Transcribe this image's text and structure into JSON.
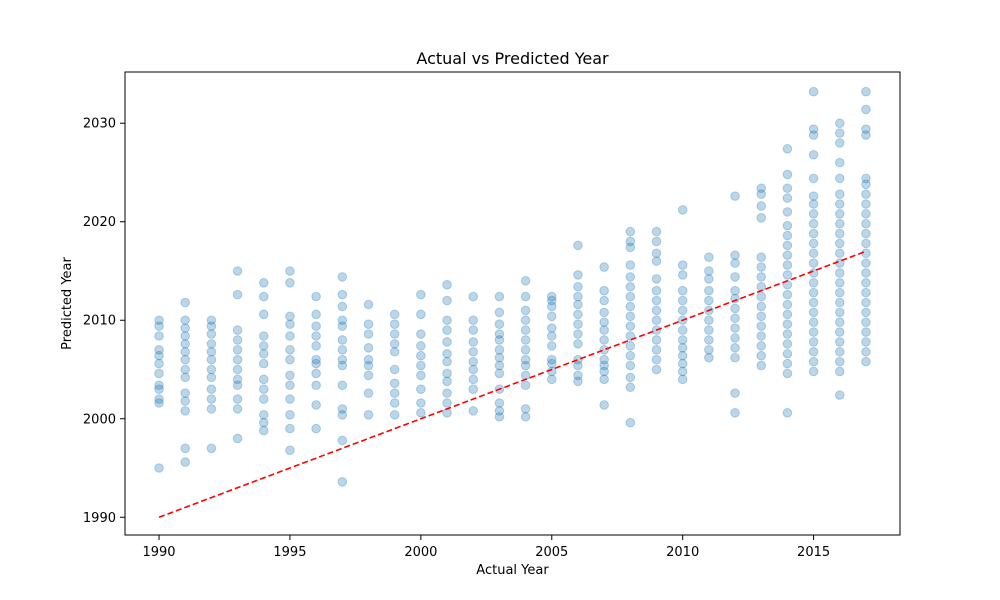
{
  "chart_data": {
    "type": "scatter",
    "title": "Actual vs Predicted Year",
    "xlabel": "Actual Year",
    "ylabel": "Predicted Year",
    "xlim": [
      1988.7,
      2018.3
    ],
    "ylim": [
      1988.2,
      2035.2
    ],
    "xticks": [
      1990,
      1995,
      2000,
      2005,
      2010,
      2015
    ],
    "yticks": [
      1990,
      2000,
      2010,
      2020,
      2030
    ],
    "grid": false,
    "point_color": "#1f77b4",
    "point_alpha": 0.3,
    "reference_line": {
      "style": "dashed",
      "color": "#ff0000",
      "points": [
        [
          1990,
          1990
        ],
        [
          2017,
          2017
        ]
      ]
    },
    "points": [
      [
        1990,
        1995.0
      ],
      [
        1990,
        2001.6
      ],
      [
        1990,
        2002.0
      ],
      [
        1990,
        2003.0
      ],
      [
        1990,
        2003.4
      ],
      [
        1990,
        2004.6
      ],
      [
        1990,
        2005.6
      ],
      [
        1990,
        2006.4
      ],
      [
        1990,
        2007.0
      ],
      [
        1990,
        2008.4
      ],
      [
        1990,
        2009.4
      ],
      [
        1990,
        2010.0
      ],
      [
        1991,
        1995.6
      ],
      [
        1991,
        1997.0
      ],
      [
        1991,
        2000.8
      ],
      [
        1991,
        2001.8
      ],
      [
        1991,
        2002.6
      ],
      [
        1991,
        2004.2
      ],
      [
        1991,
        2005.0
      ],
      [
        1991,
        2006.0
      ],
      [
        1991,
        2006.8
      ],
      [
        1991,
        2007.6
      ],
      [
        1991,
        2008.4
      ],
      [
        1991,
        2009.2
      ],
      [
        1991,
        2010.0
      ],
      [
        1991,
        2011.8
      ],
      [
        1992,
        1997.0
      ],
      [
        1992,
        2001.0
      ],
      [
        1992,
        2002.0
      ],
      [
        1992,
        2003.0
      ],
      [
        1992,
        2004.2
      ],
      [
        1992,
        2005.0
      ],
      [
        1992,
        2006.0
      ],
      [
        1992,
        2006.8
      ],
      [
        1992,
        2007.6
      ],
      [
        1992,
        2008.6
      ],
      [
        1992,
        2009.4
      ],
      [
        1992,
        2010.0
      ],
      [
        1993,
        1998.0
      ],
      [
        1993,
        2001.0
      ],
      [
        1993,
        2002.0
      ],
      [
        1993,
        2003.4
      ],
      [
        1993,
        2004.0
      ],
      [
        1993,
        2005.0
      ],
      [
        1993,
        2006.0
      ],
      [
        1993,
        2007.0
      ],
      [
        1993,
        2008.0
      ],
      [
        1993,
        2009.0
      ],
      [
        1993,
        2012.6
      ],
      [
        1993,
        2015.0
      ],
      [
        1994,
        1998.8
      ],
      [
        1994,
        1999.6
      ],
      [
        1994,
        2000.4
      ],
      [
        1994,
        2002.0
      ],
      [
        1994,
        2003.0
      ],
      [
        1994,
        2004.0
      ],
      [
        1994,
        2005.6
      ],
      [
        1994,
        2006.6
      ],
      [
        1994,
        2007.4
      ],
      [
        1994,
        2008.4
      ],
      [
        1994,
        2010.6
      ],
      [
        1994,
        2012.4
      ],
      [
        1994,
        2013.8
      ],
      [
        1995,
        1996.8
      ],
      [
        1995,
        1999.0
      ],
      [
        1995,
        2000.4
      ],
      [
        1995,
        2002.0
      ],
      [
        1995,
        2003.4
      ],
      [
        1995,
        2004.4
      ],
      [
        1995,
        2006.0
      ],
      [
        1995,
        2007.0
      ],
      [
        1995,
        2008.4
      ],
      [
        1995,
        2009.6
      ],
      [
        1995,
        2010.4
      ],
      [
        1995,
        2013.8
      ],
      [
        1995,
        2015.0
      ],
      [
        1996,
        1999.0
      ],
      [
        1996,
        2001.4
      ],
      [
        1996,
        2003.4
      ],
      [
        1996,
        2004.6
      ],
      [
        1996,
        2005.6
      ],
      [
        1996,
        2006.0
      ],
      [
        1996,
        2007.4
      ],
      [
        1996,
        2008.4
      ],
      [
        1996,
        2009.4
      ],
      [
        1996,
        2010.6
      ],
      [
        1996,
        2012.4
      ],
      [
        1997,
        1993.6
      ],
      [
        1997,
        1997.8
      ],
      [
        1997,
        2000.4
      ],
      [
        1997,
        2001.0
      ],
      [
        1997,
        2003.4
      ],
      [
        1997,
        2005.4
      ],
      [
        1997,
        2006.0
      ],
      [
        1997,
        2007.0
      ],
      [
        1997,
        2008.0
      ],
      [
        1997,
        2009.4
      ],
      [
        1997,
        2010.0
      ],
      [
        1997,
        2011.4
      ],
      [
        1997,
        2012.6
      ],
      [
        1997,
        2014.4
      ],
      [
        1998,
        2000.4
      ],
      [
        1998,
        2002.6
      ],
      [
        1998,
        2004.4
      ],
      [
        1998,
        2005.4
      ],
      [
        1998,
        2006.0
      ],
      [
        1998,
        2007.2
      ],
      [
        1998,
        2008.6
      ],
      [
        1998,
        2009.6
      ],
      [
        1998,
        2011.6
      ],
      [
        1999,
        2000.4
      ],
      [
        1999,
        2001.6
      ],
      [
        1999,
        2002.6
      ],
      [
        1999,
        2003.6
      ],
      [
        1999,
        2005.0
      ],
      [
        1999,
        2006.8
      ],
      [
        1999,
        2007.6
      ],
      [
        1999,
        2008.6
      ],
      [
        1999,
        2009.6
      ],
      [
        1999,
        2010.6
      ],
      [
        2000,
        2000.6
      ],
      [
        2000,
        2001.6
      ],
      [
        2000,
        2003.0
      ],
      [
        2000,
        2004.4
      ],
      [
        2000,
        2005.4
      ],
      [
        2000,
        2006.4
      ],
      [
        2000,
        2007.4
      ],
      [
        2000,
        2008.6
      ],
      [
        2000,
        2010.6
      ],
      [
        2000,
        2012.6
      ],
      [
        2001,
        2000.6
      ],
      [
        2001,
        2001.6
      ],
      [
        2001,
        2002.6
      ],
      [
        2001,
        2003.8
      ],
      [
        2001,
        2004.6
      ],
      [
        2001,
        2005.8
      ],
      [
        2001,
        2006.6
      ],
      [
        2001,
        2007.8
      ],
      [
        2001,
        2009.0
      ],
      [
        2001,
        2010.0
      ],
      [
        2001,
        2012.0
      ],
      [
        2001,
        2013.6
      ],
      [
        2002,
        2000.8
      ],
      [
        2002,
        2003.0
      ],
      [
        2002,
        2004.0
      ],
      [
        2002,
        2005.0
      ],
      [
        2002,
        2005.8
      ],
      [
        2002,
        2006.8
      ],
      [
        2002,
        2007.8
      ],
      [
        2002,
        2009.0
      ],
      [
        2002,
        2010.0
      ],
      [
        2002,
        2012.4
      ],
      [
        2003,
        2000.2
      ],
      [
        2003,
        2000.8
      ],
      [
        2003,
        2001.6
      ],
      [
        2003,
        2003.0
      ],
      [
        2003,
        2004.6
      ],
      [
        2003,
        2005.4
      ],
      [
        2003,
        2006.2
      ],
      [
        2003,
        2007.0
      ],
      [
        2003,
        2008.0
      ],
      [
        2003,
        2008.6
      ],
      [
        2003,
        2009.6
      ],
      [
        2003,
        2010.8
      ],
      [
        2003,
        2012.4
      ],
      [
        2004,
        2000.2
      ],
      [
        2004,
        2001.0
      ],
      [
        2004,
        2003.4
      ],
      [
        2004,
        2004.4
      ],
      [
        2004,
        2005.4
      ],
      [
        2004,
        2006.0
      ],
      [
        2004,
        2007.0
      ],
      [
        2004,
        2008.0
      ],
      [
        2004,
        2009.0
      ],
      [
        2004,
        2010.0
      ],
      [
        2004,
        2011.0
      ],
      [
        2004,
        2012.4
      ],
      [
        2004,
        2014.0
      ],
      [
        2005,
        2004.0
      ],
      [
        2005,
        2004.8
      ],
      [
        2005,
        2005.6
      ],
      [
        2005,
        2006.0
      ],
      [
        2005,
        2007.4
      ],
      [
        2005,
        2008.4
      ],
      [
        2005,
        2009.2
      ],
      [
        2005,
        2010.4
      ],
      [
        2005,
        2011.4
      ],
      [
        2005,
        2012.0
      ],
      [
        2005,
        2012.4
      ],
      [
        2006,
        2003.8
      ],
      [
        2006,
        2004.4
      ],
      [
        2006,
        2005.4
      ],
      [
        2006,
        2006.0
      ],
      [
        2006,
        2007.6
      ],
      [
        2006,
        2008.6
      ],
      [
        2006,
        2009.6
      ],
      [
        2006,
        2010.6
      ],
      [
        2006,
        2011.6
      ],
      [
        2006,
        2012.4
      ],
      [
        2006,
        2013.4
      ],
      [
        2006,
        2014.6
      ],
      [
        2006,
        2017.6
      ],
      [
        2007,
        2001.4
      ],
      [
        2007,
        2004.0
      ],
      [
        2007,
        2004.8
      ],
      [
        2007,
        2005.4
      ],
      [
        2007,
        2006.0
      ],
      [
        2007,
        2007.0
      ],
      [
        2007,
        2008.0
      ],
      [
        2007,
        2009.0
      ],
      [
        2007,
        2009.8
      ],
      [
        2007,
        2010.8
      ],
      [
        2007,
        2012.0
      ],
      [
        2007,
        2013.0
      ],
      [
        2007,
        2015.4
      ],
      [
        2008,
        1999.6
      ],
      [
        2008,
        2003.2
      ],
      [
        2008,
        2004.2
      ],
      [
        2008,
        2005.4
      ],
      [
        2008,
        2006.4
      ],
      [
        2008,
        2007.4
      ],
      [
        2008,
        2008.4
      ],
      [
        2008,
        2009.4
      ],
      [
        2008,
        2010.4
      ],
      [
        2008,
        2011.4
      ],
      [
        2008,
        2012.4
      ],
      [
        2008,
        2013.4
      ],
      [
        2008,
        2014.4
      ],
      [
        2008,
        2015.6
      ],
      [
        2008,
        2017.4
      ],
      [
        2008,
        2018.0
      ],
      [
        2008,
        2019.0
      ],
      [
        2009,
        2005.0
      ],
      [
        2009,
        2006.0
      ],
      [
        2009,
        2007.0
      ],
      [
        2009,
        2008.0
      ],
      [
        2009,
        2009.0
      ],
      [
        2009,
        2010.0
      ],
      [
        2009,
        2011.0
      ],
      [
        2009,
        2012.0
      ],
      [
        2009,
        2013.0
      ],
      [
        2009,
        2014.2
      ],
      [
        2009,
        2016.0
      ],
      [
        2009,
        2016.8
      ],
      [
        2009,
        2018.0
      ],
      [
        2009,
        2019.0
      ],
      [
        2010,
        2004.0
      ],
      [
        2010,
        2004.8
      ],
      [
        2010,
        2005.6
      ],
      [
        2010,
        2006.4
      ],
      [
        2010,
        2007.2
      ],
      [
        2010,
        2008.0
      ],
      [
        2010,
        2009.0
      ],
      [
        2010,
        2010.0
      ],
      [
        2010,
        2011.0
      ],
      [
        2010,
        2012.0
      ],
      [
        2010,
        2013.0
      ],
      [
        2010,
        2014.6
      ],
      [
        2010,
        2015.6
      ],
      [
        2010,
        2021.2
      ],
      [
        2011,
        2006.2
      ],
      [
        2011,
        2007.0
      ],
      [
        2011,
        2008.0
      ],
      [
        2011,
        2009.0
      ],
      [
        2011,
        2010.0
      ],
      [
        2011,
        2011.0
      ],
      [
        2011,
        2012.0
      ],
      [
        2011,
        2013.0
      ],
      [
        2011,
        2014.2
      ],
      [
        2011,
        2015.0
      ],
      [
        2011,
        2016.4
      ],
      [
        2012,
        2000.6
      ],
      [
        2012,
        2002.6
      ],
      [
        2012,
        2006.2
      ],
      [
        2012,
        2007.2
      ],
      [
        2012,
        2008.2
      ],
      [
        2012,
        2009.2
      ],
      [
        2012,
        2010.2
      ],
      [
        2012,
        2011.2
      ],
      [
        2012,
        2012.2
      ],
      [
        2012,
        2013.0
      ],
      [
        2012,
        2014.4
      ],
      [
        2012,
        2015.8
      ],
      [
        2012,
        2016.6
      ],
      [
        2012,
        2022.6
      ],
      [
        2013,
        2005.4
      ],
      [
        2013,
        2006.4
      ],
      [
        2013,
        2007.4
      ],
      [
        2013,
        2008.4
      ],
      [
        2013,
        2009.4
      ],
      [
        2013,
        2010.4
      ],
      [
        2013,
        2011.4
      ],
      [
        2013,
        2012.4
      ],
      [
        2013,
        2013.4
      ],
      [
        2013,
        2014.4
      ],
      [
        2013,
        2015.4
      ],
      [
        2013,
        2016.4
      ],
      [
        2013,
        2020.4
      ],
      [
        2013,
        2021.6
      ],
      [
        2013,
        2022.8
      ],
      [
        2013,
        2023.4
      ],
      [
        2014,
        2000.6
      ],
      [
        2014,
        2004.6
      ],
      [
        2014,
        2005.6
      ],
      [
        2014,
        2006.6
      ],
      [
        2014,
        2007.6
      ],
      [
        2014,
        2008.6
      ],
      [
        2014,
        2009.6
      ],
      [
        2014,
        2010.6
      ],
      [
        2014,
        2011.6
      ],
      [
        2014,
        2012.6
      ],
      [
        2014,
        2013.6
      ],
      [
        2014,
        2014.6
      ],
      [
        2014,
        2015.6
      ],
      [
        2014,
        2016.6
      ],
      [
        2014,
        2017.6
      ],
      [
        2014,
        2018.6
      ],
      [
        2014,
        2019.6
      ],
      [
        2014,
        2021.0
      ],
      [
        2014,
        2022.4
      ],
      [
        2014,
        2023.4
      ],
      [
        2014,
        2024.8
      ],
      [
        2014,
        2027.4
      ],
      [
        2015,
        2004.8
      ],
      [
        2015,
        2005.8
      ],
      [
        2015,
        2006.8
      ],
      [
        2015,
        2007.8
      ],
      [
        2015,
        2008.8
      ],
      [
        2015,
        2009.8
      ],
      [
        2015,
        2010.8
      ],
      [
        2015,
        2011.8
      ],
      [
        2015,
        2012.8
      ],
      [
        2015,
        2013.8
      ],
      [
        2015,
        2014.8
      ],
      [
        2015,
        2015.8
      ],
      [
        2015,
        2016.8
      ],
      [
        2015,
        2017.8
      ],
      [
        2015,
        2018.8
      ],
      [
        2015,
        2019.8
      ],
      [
        2015,
        2020.8
      ],
      [
        2015,
        2021.8
      ],
      [
        2015,
        2022.6
      ],
      [
        2015,
        2024.4
      ],
      [
        2015,
        2026.8
      ],
      [
        2015,
        2028.8
      ],
      [
        2015,
        2029.4
      ],
      [
        2015,
        2033.2
      ],
      [
        2016,
        2002.4
      ],
      [
        2016,
        2004.8
      ],
      [
        2016,
        2005.8
      ],
      [
        2016,
        2006.8
      ],
      [
        2016,
        2007.8
      ],
      [
        2016,
        2008.8
      ],
      [
        2016,
        2009.8
      ],
      [
        2016,
        2010.8
      ],
      [
        2016,
        2011.8
      ],
      [
        2016,
        2012.8
      ],
      [
        2016,
        2013.8
      ],
      [
        2016,
        2014.8
      ],
      [
        2016,
        2015.8
      ],
      [
        2016,
        2016.8
      ],
      [
        2016,
        2017.8
      ],
      [
        2016,
        2018.8
      ],
      [
        2016,
        2019.8
      ],
      [
        2016,
        2020.8
      ],
      [
        2016,
        2021.8
      ],
      [
        2016,
        2022.8
      ],
      [
        2016,
        2024.4
      ],
      [
        2016,
        2026.0
      ],
      [
        2016,
        2028.0
      ],
      [
        2016,
        2029.0
      ],
      [
        2016,
        2030.0
      ],
      [
        2017,
        2005.8
      ],
      [
        2017,
        2006.8
      ],
      [
        2017,
        2007.8
      ],
      [
        2017,
        2008.8
      ],
      [
        2017,
        2009.8
      ],
      [
        2017,
        2010.8
      ],
      [
        2017,
        2011.8
      ],
      [
        2017,
        2012.8
      ],
      [
        2017,
        2013.8
      ],
      [
        2017,
        2014.8
      ],
      [
        2017,
        2015.8
      ],
      [
        2017,
        2016.8
      ],
      [
        2017,
        2017.8
      ],
      [
        2017,
        2018.8
      ],
      [
        2017,
        2019.8
      ],
      [
        2017,
        2020.8
      ],
      [
        2017,
        2021.8
      ],
      [
        2017,
        2022.8
      ],
      [
        2017,
        2023.8
      ],
      [
        2017,
        2024.4
      ],
      [
        2017,
        2028.8
      ],
      [
        2017,
        2029.4
      ],
      [
        2017,
        2031.4
      ],
      [
        2017,
        2033.2
      ]
    ]
  }
}
